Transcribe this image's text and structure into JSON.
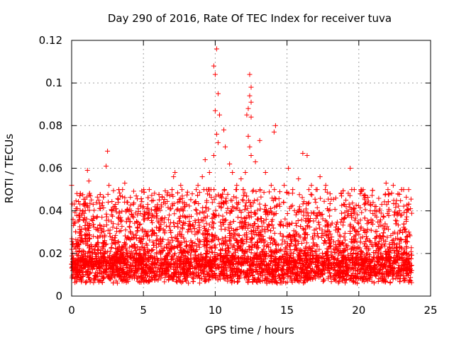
{
  "chart_data": {
    "type": "scatter",
    "title": "Day 290 of 2016, Rate Of TEC Index for receiver tuva",
    "xlabel": "GPS time / hours",
    "ylabel": "ROTI / TECUs",
    "xlim": [
      0,
      25
    ],
    "ylim": [
      0,
      0.12
    ],
    "xticks": [
      0,
      5,
      10,
      15,
      20,
      25
    ],
    "xtick_labels": [
      "0",
      "5",
      "10",
      "15",
      "20",
      "25"
    ],
    "yticks": [
      0,
      0.02,
      0.04,
      0.06,
      0.08,
      0.1,
      0.12
    ],
    "ytick_labels": [
      "0",
      "0.02",
      "0.04",
      "0.06",
      "0.08",
      "0.1",
      "0.12"
    ],
    "grid": true,
    "marker": "+",
    "color": "#ff0000",
    "series": [
      {
        "name": "ROTI",
        "note": "dense cloud of ~0.002-0.04 TECU/s across 0-23.7 h; listed points are representative and notable spikes",
        "points": [
          [
            0.0,
            0.052
          ],
          [
            0.1,
            0.036
          ],
          [
            0.2,
            0.012
          ],
          [
            0.3,
            0.041
          ],
          [
            0.5,
            0.024
          ],
          [
            0.7,
            0.038
          ],
          [
            0.9,
            0.043
          ],
          [
            1.0,
            0.015
          ],
          [
            1.1,
            0.059
          ],
          [
            1.2,
            0.054
          ],
          [
            1.3,
            0.047
          ],
          [
            1.5,
            0.043
          ],
          [
            1.8,
            0.032
          ],
          [
            2.0,
            0.041
          ],
          [
            2.2,
            0.025
          ],
          [
            2.4,
            0.061
          ],
          [
            2.5,
            0.068
          ],
          [
            2.6,
            0.052
          ],
          [
            2.9,
            0.034
          ],
          [
            3.1,
            0.041
          ],
          [
            3.4,
            0.047
          ],
          [
            3.7,
            0.053
          ],
          [
            3.9,
            0.044
          ],
          [
            4.2,
            0.038
          ],
          [
            4.5,
            0.047
          ],
          [
            5.0,
            0.042
          ],
          [
            5.3,
            0.043
          ],
          [
            5.6,
            0.038
          ],
          [
            6.0,
            0.041
          ],
          [
            6.4,
            0.044
          ],
          [
            6.8,
            0.038
          ],
          [
            7.1,
            0.056
          ],
          [
            7.2,
            0.058
          ],
          [
            7.6,
            0.052
          ],
          [
            7.9,
            0.042
          ],
          [
            8.4,
            0.048
          ],
          [
            8.8,
            0.052
          ],
          [
            9.1,
            0.056
          ],
          [
            9.3,
            0.064
          ],
          [
            9.6,
            0.058
          ],
          [
            9.9,
            0.108
          ],
          [
            10.0,
            0.104
          ],
          [
            10.1,
            0.116
          ],
          [
            10.2,
            0.095
          ],
          [
            10.3,
            0.085
          ],
          [
            10.0,
            0.087
          ],
          [
            10.1,
            0.076
          ],
          [
            10.2,
            0.072
          ],
          [
            9.9,
            0.066
          ],
          [
            10.6,
            0.078
          ],
          [
            10.7,
            0.07
          ],
          [
            11.0,
            0.062
          ],
          [
            11.2,
            0.058
          ],
          [
            11.5,
            0.052
          ],
          [
            11.8,
            0.055
          ],
          [
            12.1,
            0.058
          ],
          [
            12.2,
            0.085
          ],
          [
            12.3,
            0.088
          ],
          [
            12.4,
            0.104
          ],
          [
            12.5,
            0.098
          ],
          [
            12.4,
            0.094
          ],
          [
            12.5,
            0.091
          ],
          [
            12.5,
            0.084
          ],
          [
            12.3,
            0.075
          ],
          [
            12.4,
            0.07
          ],
          [
            12.5,
            0.066
          ],
          [
            12.8,
            0.063
          ],
          [
            13.1,
            0.073
          ],
          [
            13.5,
            0.058
          ],
          [
            13.9,
            0.052
          ],
          [
            14.1,
            0.077
          ],
          [
            14.2,
            0.08
          ],
          [
            14.5,
            0.049
          ],
          [
            14.8,
            0.052
          ],
          [
            15.1,
            0.06
          ],
          [
            15.4,
            0.05
          ],
          [
            15.8,
            0.055
          ],
          [
            16.1,
            0.067
          ],
          [
            16.4,
            0.066
          ],
          [
            16.7,
            0.052
          ],
          [
            17.0,
            0.044
          ],
          [
            17.3,
            0.056
          ],
          [
            17.7,
            0.052
          ],
          [
            18.0,
            0.048
          ],
          [
            18.4,
            0.046
          ],
          [
            18.8,
            0.047
          ],
          [
            19.1,
            0.045
          ],
          [
            19.4,
            0.06
          ],
          [
            19.7,
            0.041
          ],
          [
            20.1,
            0.048
          ],
          [
            20.4,
            0.046
          ],
          [
            20.8,
            0.04
          ],
          [
            21.2,
            0.042
          ],
          [
            21.6,
            0.043
          ],
          [
            21.9,
            0.053
          ],
          [
            22.1,
            0.048
          ],
          [
            22.4,
            0.052
          ],
          [
            22.7,
            0.039
          ],
          [
            23.0,
            0.038
          ],
          [
            23.3,
            0.036
          ],
          [
            23.6,
            0.041
          ]
        ]
      }
    ]
  }
}
